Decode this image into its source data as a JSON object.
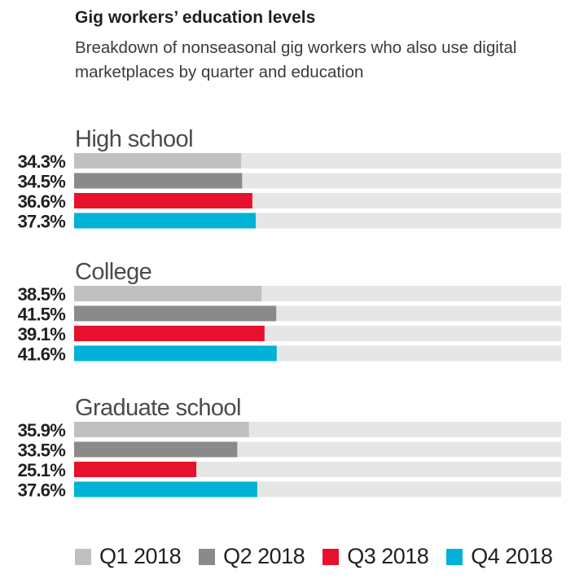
{
  "header": {
    "title": "Gig workers’ education levels",
    "subtitle": "Breakdown of nonseasonal gig workers who also use digital marketplaces by quarter and education"
  },
  "chart_data": {
    "type": "bar",
    "orientation": "horizontal",
    "title": "Gig workers’ education levels",
    "subtitle": "Breakdown of nonseasonal gig workers who also use digital marketplaces by quarter and education",
    "xlim": [
      0,
      100
    ],
    "value_suffix": "%",
    "groups": [
      {
        "name": "High school",
        "values": [
          34.3,
          34.5,
          36.6,
          37.3
        ],
        "labels": [
          "34.3%",
          "34.5%",
          "36.6%",
          "37.3%"
        ]
      },
      {
        "name": "College",
        "values": [
          38.5,
          41.5,
          39.1,
          41.6
        ],
        "labels": [
          "38.5%",
          "41.5%",
          "39.1%",
          "41.6%"
        ]
      },
      {
        "name": "Graduate school",
        "values": [
          35.9,
          33.5,
          25.1,
          37.6
        ],
        "labels": [
          "35.9%",
          "33.5%",
          "25.1%",
          "37.6%"
        ]
      }
    ],
    "series": [
      {
        "name": "Q1 2018",
        "color": "#c0c0c0"
      },
      {
        "name": "Q2 2018",
        "color": "#8a8a8a"
      },
      {
        "name": "Q3 2018",
        "color": "#e8112d"
      },
      {
        "name": "Q4 2018",
        "color": "#00b2d6"
      }
    ],
    "track_color": "#e6e6e6",
    "legend_position": "bottom"
  }
}
